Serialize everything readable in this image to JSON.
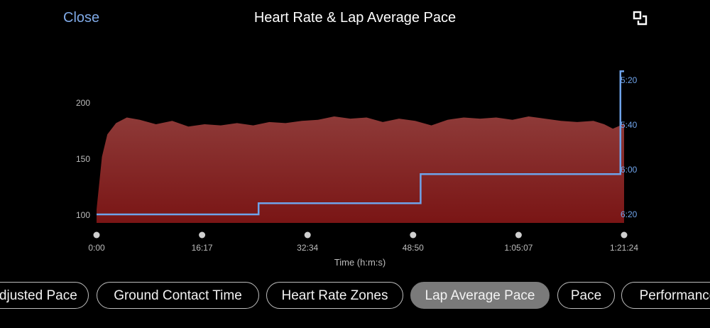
{
  "header": {
    "close_label": "Close",
    "title": "Heart Rate & Lap Average Pace"
  },
  "tabs": [
    {
      "label": "Adjusted Pace",
      "active": false
    },
    {
      "label": "Ground Contact Time",
      "active": false
    },
    {
      "label": "Heart Rate Zones",
      "active": false
    },
    {
      "label": "Lap Average Pace",
      "active": true
    },
    {
      "label": "Pace",
      "active": false
    },
    {
      "label": "Performance",
      "active": false
    }
  ],
  "colors": {
    "accent": "#7fa9e6",
    "hr_fill_top": "#8e3a38",
    "hr_fill_bottom": "#7a1515",
    "pace_line": "#6fa3ea"
  },
  "chart_data": {
    "type": "area",
    "title": "Heart Rate & Lap Average Pace",
    "xlabel": "Time (h:m:s)",
    "x_ticks": [
      "0:00",
      "16:17",
      "32:34",
      "48:50",
      "1:05:07",
      "1:21:24"
    ],
    "x_range_seconds": [
      0,
      4884
    ],
    "left_axis": {
      "label": "Heart Rate",
      "ticks": [
        100,
        150,
        200
      ],
      "ylim": [
        95,
        205
      ]
    },
    "right_axis": {
      "label": "Lap Average Pace",
      "ticks": [
        "5:20",
        "5:40",
        "6:00",
        "6:20"
      ],
      "range_seconds": [
        320,
        380
      ],
      "inverted": true
    },
    "series": [
      {
        "name": "Heart Rate",
        "type": "area",
        "x_seconds": [
          0,
          50,
          100,
          180,
          280,
          400,
          550,
          700,
          850,
          1000,
          1150,
          1300,
          1450,
          1600,
          1750,
          1900,
          2050,
          2200,
          2350,
          2500,
          2650,
          2800,
          2950,
          3100,
          3250,
          3400,
          3550,
          3700,
          3850,
          4000,
          4150,
          4300,
          4450,
          4600,
          4700,
          4780,
          4850,
          4884
        ],
        "values": [
          105,
          152,
          172,
          182,
          187,
          185,
          181,
          184,
          179,
          181,
          180,
          182,
          180,
          183,
          182,
          184,
          185,
          188,
          186,
          187,
          183,
          186,
          184,
          180,
          185,
          187,
          186,
          187,
          185,
          188,
          186,
          184,
          183,
          184,
          181,
          177,
          180,
          182
        ]
      },
      {
        "name": "Lap Average Pace",
        "type": "step",
        "laps": [
          {
            "start_seconds": 0,
            "end_seconds": 1500,
            "pace": "6:20"
          },
          {
            "start_seconds": 1500,
            "end_seconds": 3000,
            "pace": "6:15"
          },
          {
            "start_seconds": 3000,
            "end_seconds": 4850,
            "pace": "6:02"
          },
          {
            "start_seconds": 4850,
            "end_seconds": 4884,
            "pace": "5:16"
          }
        ]
      }
    ]
  }
}
